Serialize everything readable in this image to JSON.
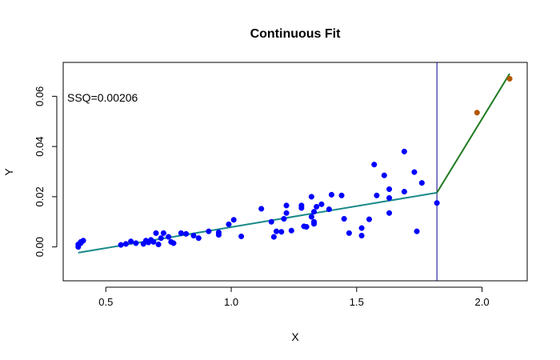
{
  "chart_data": {
    "type": "scatter",
    "title": "Continuous Fit",
    "xlabel": "X",
    "ylabel": "Y",
    "xlim": [
      0.33,
      2.18
    ],
    "ylim": [
      -0.0135,
      0.0735
    ],
    "xticks": [
      0.5,
      1.0,
      1.5,
      2.0
    ],
    "xtick_labels": [
      "0.5",
      "1.0",
      "1.5",
      "2.0"
    ],
    "yticks": [
      0.0,
      0.02,
      0.04,
      0.06
    ],
    "ytick_labels": [
      "0.00",
      "0.02",
      "0.04",
      "0.06"
    ],
    "grid": false,
    "annotation": "SSQ=0.00206",
    "breakpoint_x": 1.82,
    "colors": {
      "blue_points": "#0000ff",
      "brown_points": "#b35806",
      "fit_left": "#1a8a8a",
      "fit_right": "#1f7a1f",
      "vline": "#00008b",
      "axis": "#000000"
    },
    "series": [
      {
        "values": [
          [
            0.39,
            0.0
          ],
          [
            0.39,
            0.001
          ],
          [
            0.4,
            0.0015
          ],
          [
            0.4,
            0.002
          ],
          [
            0.41,
            0.0025
          ],
          [
            0.56,
            0.0008
          ],
          [
            0.58,
            0.0012
          ],
          [
            0.6,
            0.0022
          ],
          [
            0.62,
            0.0015
          ],
          [
            0.65,
            0.0012
          ],
          [
            0.66,
            0.0025
          ],
          [
            0.67,
            0.0018
          ],
          [
            0.68,
            0.0028
          ],
          [
            0.69,
            0.002
          ],
          [
            0.7,
            0.0055
          ],
          [
            0.71,
            0.001
          ],
          [
            0.72,
            0.0035
          ],
          [
            0.73,
            0.0055
          ],
          [
            0.75,
            0.004
          ],
          [
            0.76,
            0.002
          ],
          [
            0.77,
            0.0015
          ],
          [
            0.8,
            0.0055
          ],
          [
            0.82,
            0.0052
          ],
          [
            0.85,
            0.0045
          ],
          [
            0.87,
            0.0035
          ],
          [
            0.91,
            0.0062
          ],
          [
            0.95,
            0.0048
          ],
          [
            0.95,
            0.0058
          ],
          [
            0.99,
            0.009
          ],
          [
            1.01,
            0.0108
          ],
          [
            1.04,
            0.0042
          ],
          [
            1.12,
            0.0152
          ],
          [
            1.16,
            0.01
          ],
          [
            1.17,
            0.004
          ],
          [
            1.18,
            0.0062
          ],
          [
            1.2,
            0.006
          ],
          [
            1.21,
            0.0112
          ],
          [
            1.22,
            0.0135
          ],
          [
            1.22,
            0.0165
          ],
          [
            1.24,
            0.0065
          ],
          [
            1.28,
            0.0165
          ],
          [
            1.28,
            0.0155
          ],
          [
            1.29,
            0.0082
          ],
          [
            1.3,
            0.008
          ],
          [
            1.32,
            0.012
          ],
          [
            1.32,
            0.02
          ],
          [
            1.33,
            0.01
          ],
          [
            1.33,
            0.0092
          ],
          [
            1.33,
            0.014
          ],
          [
            1.34,
            0.016
          ],
          [
            1.36,
            0.017
          ],
          [
            1.39,
            0.015
          ],
          [
            1.4,
            0.0208
          ],
          [
            1.44,
            0.0205
          ],
          [
            1.45,
            0.0112
          ],
          [
            1.47,
            0.0055
          ],
          [
            1.52,
            0.0045
          ],
          [
            1.52,
            0.0075
          ],
          [
            1.55,
            0.011
          ],
          [
            1.57,
            0.0328
          ],
          [
            1.58,
            0.0205
          ],
          [
            1.61,
            0.0285
          ],
          [
            1.63,
            0.023
          ],
          [
            1.63,
            0.0195
          ],
          [
            1.63,
            0.0135
          ],
          [
            1.69,
            0.038
          ],
          [
            1.69,
            0.022
          ],
          [
            1.73,
            0.0298
          ],
          [
            1.74,
            0.0062
          ],
          [
            1.76,
            0.0255
          ],
          [
            1.82,
            0.0175
          ]
        ]
      },
      {
        "values": [
          [
            1.98,
            0.0535
          ],
          [
            2.11,
            0.067
          ]
        ]
      }
    ],
    "fit_segments": [
      [
        [
          0.39,
          -0.0023
        ],
        [
          1.82,
          0.0216
        ]
      ],
      [
        [
          1.82,
          0.0216
        ],
        [
          2.11,
          0.069
        ]
      ]
    ]
  }
}
